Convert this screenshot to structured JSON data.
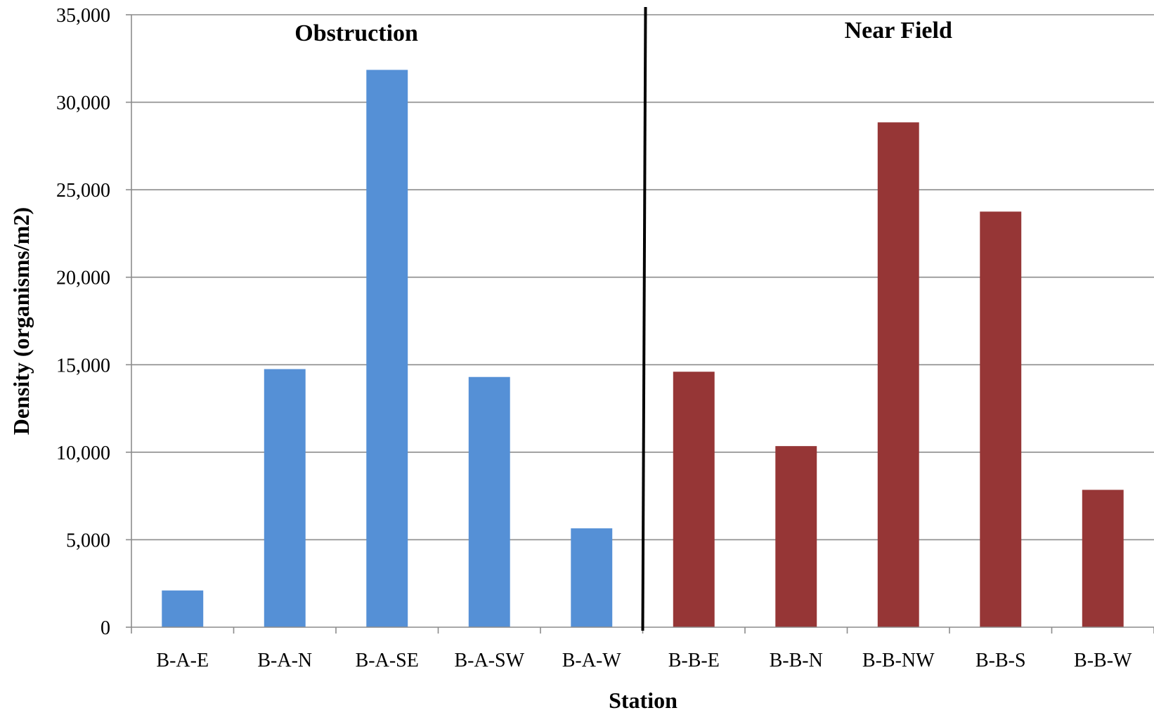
{
  "chart_data": {
    "type": "bar",
    "categories": [
      "B-A-E",
      "B-A-N",
      "B-A-SE",
      "B-A-SW",
      "B-A-W",
      "B-B-E",
      "B-B-N",
      "B-B-NW",
      "B-B-S",
      "B-B-W"
    ],
    "values": [
      2100,
      14750,
      31850,
      14300,
      5650,
      14600,
      10350,
      28850,
      23750,
      7850
    ],
    "bar_colors": [
      "#5590d6",
      "#5590d6",
      "#5590d6",
      "#5590d6",
      "#5590d6",
      "#963636",
      "#963636",
      "#963636",
      "#963636",
      "#963636"
    ],
    "groups": [
      {
        "label": "Obstruction",
        "color": "#5590d6",
        "categories": [
          "B-A-E",
          "B-A-N",
          "B-A-SE",
          "B-A-SW",
          "B-A-W"
        ]
      },
      {
        "label": "Near Field",
        "color": "#963636",
        "categories": [
          "B-B-E",
          "B-B-N",
          "B-B-NW",
          "B-B-S",
          "B-B-W"
        ]
      }
    ],
    "xlabel": "Station",
    "ylabel": "Density (organisms/m2)",
    "ylim": [
      0,
      35000
    ],
    "yticks": [
      0,
      5000,
      10000,
      15000,
      20000,
      25000,
      30000,
      35000
    ],
    "ytick_labels": [
      "0",
      "5,000",
      "10,000",
      "15,000",
      "20,000",
      "25,000",
      "30,000",
      "35,000"
    ],
    "grid": "horizontal",
    "legend": "none",
    "group_divider": "between B-A-W and B-B-E"
  }
}
